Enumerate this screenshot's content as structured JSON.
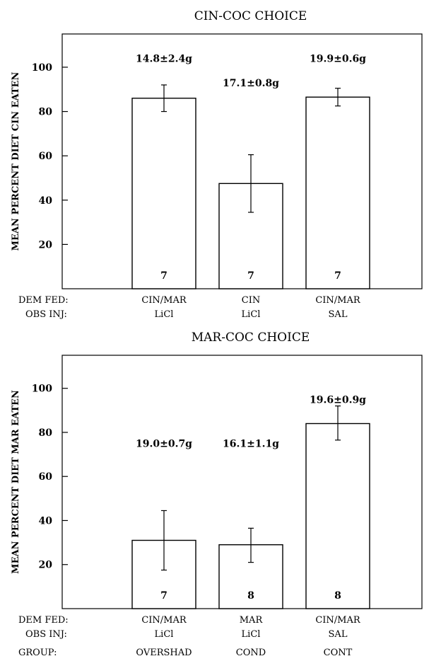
{
  "chart_data": [
    {
      "type": "bar",
      "title": "CIN-COC CHOICE",
      "ylabel": "MEAN PERCENT DIET CIN EATEN",
      "yticks": [
        20,
        40,
        60,
        80,
        100
      ],
      "ylim": [
        0,
        115
      ],
      "grid": false,
      "row_labels": [
        "DEM FED:",
        "OBS INJ:"
      ],
      "categories": [
        {
          "dem_fed": "CIN/MAR",
          "obs_inj": "LiCl"
        },
        {
          "dem_fed": "CIN",
          "obs_inj": "LiCl"
        },
        {
          "dem_fed": "CIN/MAR",
          "obs_inj": "SAL"
        }
      ],
      "values": [
        86,
        47.5,
        86.5
      ],
      "errors": [
        [
          80,
          92
        ],
        [
          34.5,
          60.5
        ],
        [
          82.5,
          90.5
        ]
      ],
      "n": [
        "7",
        "7",
        "7"
      ],
      "annotations": [
        "14.8±2.4g",
        "17.1±0.8g",
        "19.9±0.6g"
      ],
      "annotation_levels": [
        104,
        93,
        104
      ]
    },
    {
      "type": "bar",
      "title": "MAR-COC CHOICE",
      "ylabel": "MEAN PERCENT DIET MAR EATEN",
      "yticks": [
        20,
        40,
        60,
        80,
        100
      ],
      "ylim": [
        0,
        115
      ],
      "grid": false,
      "row_labels": [
        "DEM FED:",
        "OBS INJ:",
        "GROUP:"
      ],
      "categories": [
        {
          "dem_fed": "CIN/MAR",
          "obs_inj": "LiCl",
          "group": "OVERSHAD"
        },
        {
          "dem_fed": "MAR",
          "obs_inj": "LiCl",
          "group": "COND"
        },
        {
          "dem_fed": "CIN/MAR",
          "obs_inj": "SAL",
          "group": "CONT"
        }
      ],
      "values": [
        31,
        29,
        84
      ],
      "errors": [
        [
          17.5,
          44.5
        ],
        [
          21,
          36.5
        ],
        [
          76.5,
          92
        ]
      ],
      "n": [
        "7",
        "8",
        "8"
      ],
      "annotations": [
        "19.0±0.7g",
        "16.1±1.1g",
        "19.6±0.9g"
      ],
      "annotation_levels": [
        75,
        75,
        95
      ]
    }
  ]
}
